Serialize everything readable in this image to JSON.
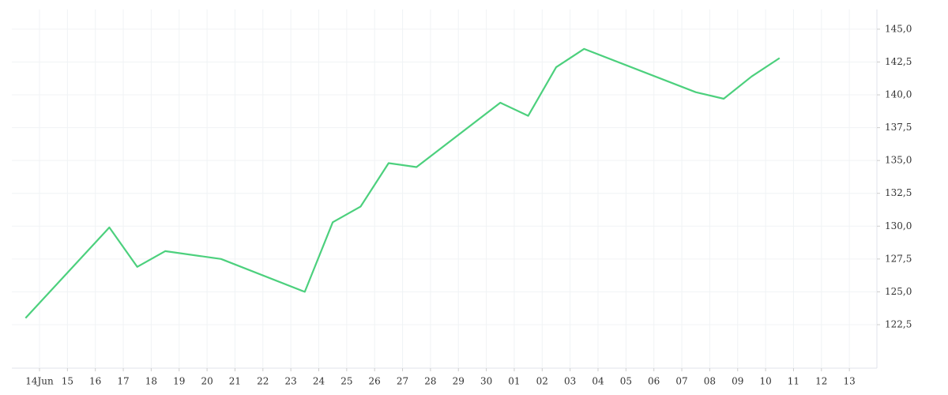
{
  "chart_data": {
    "type": "line",
    "categories": [
      "14Jun",
      "15",
      "16",
      "17",
      "18",
      "19",
      "20",
      "21",
      "22",
      "23",
      "24",
      "25",
      "26",
      "27",
      "28",
      "29",
      "30",
      "01",
      "02",
      "03",
      "04",
      "05",
      "06",
      "07",
      "08",
      "09",
      "10",
      "11",
      "12",
      "13"
    ],
    "series": [
      {
        "color": "#4cd07d",
        "x": [
          "14Jun",
          "17",
          "18",
          "19",
          "21",
          "24",
          "25",
          "26",
          "27",
          "28",
          "01",
          "02",
          "03",
          "04",
          "08",
          "09",
          "10",
          "11"
        ],
        "values": [
          123.0,
          129.9,
          126.9,
          128.1,
          127.5,
          125.0,
          130.3,
          131.5,
          134.8,
          134.5,
          139.4,
          138.4,
          142.1,
          143.5,
          140.2,
          139.7,
          141.4,
          142.8
        ]
      }
    ],
    "ylim": [
      119.55,
      146.5
    ],
    "yticks": [
      {
        "value": 122.5,
        "label": "122,5"
      },
      {
        "value": 125,
        "label": "125,0"
      },
      {
        "value": 127.5,
        "label": "127,5"
      },
      {
        "value": 130,
        "label": "130,0"
      },
      {
        "value": 132.5,
        "label": "132,5"
      },
      {
        "value": 135,
        "label": "135,0"
      },
      {
        "value": 137.5,
        "label": "137,5"
      },
      {
        "value": 140,
        "label": "140,0"
      },
      {
        "value": 142.5,
        "label": "142,5"
      },
      {
        "value": 145,
        "label": "145,0"
      }
    ],
    "grid": true
  }
}
